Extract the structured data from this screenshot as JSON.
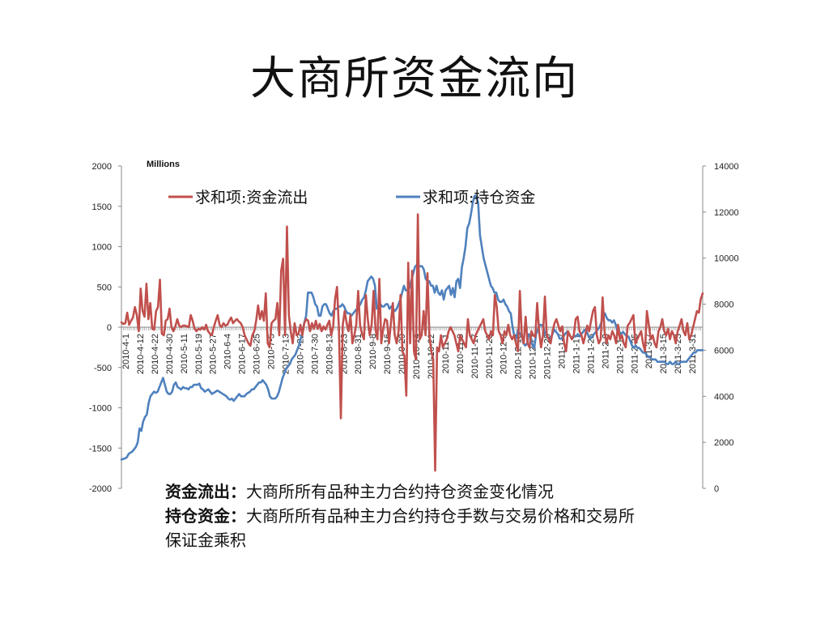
{
  "slide": {
    "title": "大商所资金流向"
  },
  "colors": {
    "outflow": "#C0504D",
    "position": "#4F81BD",
    "axis": "#888888"
  },
  "notes": [
    {
      "term": "资金流出：",
      "text": "大商所所有品种主力合约持仓资金变化情况"
    },
    {
      "term": "持仓资金：",
      "text": "大商所所有品种主力合约持仓手数与交易价格和交易所保证金乘积"
    }
  ],
  "chart_data": {
    "type": "line",
    "unit_label": "Millions",
    "y_left": {
      "min": -2000,
      "max": 2000,
      "ticks": [
        2000,
        1500,
        1000,
        500,
        0,
        -500,
        -1000,
        -1500,
        -2000
      ]
    },
    "y_right": {
      "min": 0,
      "max": 14000,
      "ticks": [
        14000,
        12000,
        10000,
        8000,
        6000,
        4000,
        2000,
        0
      ]
    },
    "x_tick_labels": [
      "2010-4-1",
      "2010-4-12",
      "2010-4-22",
      "2010-4-30",
      "2010-5-11",
      "2010-5-19",
      "2010-5-27",
      "2010-6-4",
      "2010-6-17",
      "2010-6-25",
      "2010-7-5",
      "2010-7-13",
      "2010-7-22",
      "2010-7-30",
      "2010-8-13",
      "2010-8-23",
      "2010-8-31",
      "2010-9-8",
      "2010-9-16",
      "2010-9-29",
      "2010-10-14",
      "2010-10-22",
      "2010-11-1",
      "2010-11-9",
      "2010-11-17",
      "2010-11-25",
      "2010-12-3",
      "2010-12-13",
      "2010-12-21",
      "2010-12-29",
      "2011-1-7",
      "2011-1-17",
      "2011-1-25",
      "2011-2-9",
      "2011-2-17",
      "2011-2-25",
      "2011-3-7",
      "2011-3-15",
      "2011-3-23",
      "2011-3-31"
    ],
    "legend_position": "top",
    "series": [
      {
        "name": "求和项:资金流出",
        "axis": "left",
        "values": [
          60,
          40,
          50,
          180,
          30,
          80,
          120,
          250,
          150,
          -50,
          480,
          200,
          130,
          540,
          100,
          300,
          -20,
          -30,
          200,
          250,
          590,
          -80,
          -100,
          80,
          100,
          230,
          0,
          -50,
          10,
          100,
          20,
          0,
          20,
          20,
          10,
          0,
          150,
          80,
          -20,
          -50,
          -20,
          -30,
          0,
          -30,
          30,
          -50,
          -80,
          -100,
          0,
          80,
          150,
          30,
          0,
          50,
          20,
          30,
          80,
          120,
          50,
          80,
          100,
          70,
          50,
          0,
          -100,
          -150,
          -200,
          -230,
          -100,
          -50,
          80,
          270,
          100,
          200,
          80,
          420,
          -200,
          -250,
          50,
          80,
          100,
          300,
          -100,
          700,
          850,
          -100,
          1250,
          150,
          -60,
          -200,
          50,
          -100,
          -80,
          30,
          -100,
          50,
          100,
          80,
          -50,
          50,
          -20,
          80,
          -20,
          40,
          -50,
          10,
          -30,
          30,
          80,
          -100,
          10,
          350,
          500,
          -20,
          -1130,
          30,
          200,
          50,
          -50,
          150,
          -200,
          -100,
          30,
          450,
          20,
          -80,
          -150,
          400,
          100,
          -100,
          30,
          450,
          -30,
          -150,
          600,
          -200,
          -20,
          100,
          80,
          -200,
          50,
          300,
          -100,
          -200,
          -50,
          400,
          -300,
          -350,
          -850,
          800,
          -200,
          700,
          -300,
          -400,
          1400,
          -150,
          -100,
          200,
          -100,
          670,
          -100,
          -300,
          -400,
          -1780,
          -250,
          -300,
          -100,
          -250,
          -200,
          -150,
          -50,
          0,
          -50,
          -100,
          -200,
          -300,
          -100,
          -150,
          -200,
          -250,
          100,
          -100,
          -150,
          -200,
          -100,
          -50,
          0,
          50,
          100,
          -50,
          -100,
          -150,
          -50,
          -100,
          400,
          250,
          -50,
          -100,
          -200,
          -50,
          -100,
          30,
          -100,
          -150,
          -100,
          -200,
          -300,
          450,
          -100,
          -200,
          130,
          -200,
          -250,
          -50,
          -100,
          -120,
          300,
          -50,
          -250,
          -100,
          380,
          -100,
          -150,
          -200,
          -50,
          50,
          100,
          20,
          -50,
          10,
          -200,
          -300,
          -50,
          -100,
          -150,
          -100,
          100,
          130,
          -50,
          -100,
          -200,
          -100,
          20,
          -50,
          80,
          200,
          250,
          -100,
          -200,
          -150,
          370,
          -50,
          -200,
          -100,
          -150,
          -50,
          -100,
          -200,
          30,
          -150,
          -100,
          -200,
          -250,
          20,
          50,
          100,
          150,
          -200,
          -150,
          -100,
          -50,
          -200,
          -300,
          200,
          30,
          -150,
          -100,
          -200,
          -250,
          -50,
          0,
          100,
          -50,
          -100,
          -20,
          -150,
          -50,
          -100,
          -200,
          -50,
          20,
          100,
          -50,
          -100,
          50,
          -150,
          -100,
          0,
          100,
          200,
          180,
          350,
          420
        ]
      },
      {
        "name": "求和项:持仓资金",
        "axis": "right",
        "values": [
          1250,
          1280,
          1300,
          1350,
          1500,
          1550,
          1600,
          1700,
          1800,
          2000,
          2600,
          2500,
          2900,
          3100,
          3200,
          3700,
          4000,
          4100,
          4200,
          4150,
          4200,
          4400,
          4600,
          4800,
          4500,
          4200,
          4100,
          4100,
          4200,
          4500,
          4600,
          4400,
          4350,
          4300,
          4400,
          4350,
          4350,
          4300,
          4400,
          4400,
          4500,
          4500,
          4500,
          4550,
          4350,
          4300,
          4200,
          4250,
          4300,
          4200,
          4100,
          4150,
          4200,
          4250,
          4200,
          4150,
          4100,
          4050,
          4000,
          3900,
          3850,
          3900,
          3800,
          3900,
          4000,
          4100,
          4000,
          4000,
          4000,
          4100,
          4150,
          4200,
          4300,
          4300,
          4400,
          4500,
          4600,
          4600,
          4700,
          4600,
          4500,
          4300,
          4000,
          3900,
          3900,
          3900,
          4000,
          4200,
          4500,
          4800,
          5000,
          5200,
          5300,
          5400,
          5600,
          5700,
          5800,
          6000,
          6200,
          6500,
          6800,
          7200,
          7500,
          8500,
          8500,
          8500,
          8300,
          8000,
          7900,
          7500,
          7500,
          7900,
          8000,
          8000,
          7800,
          7600,
          7500,
          7700,
          7800,
          7800,
          7900,
          7900,
          8000,
          7900,
          7700,
          7600,
          7600,
          7500,
          7600,
          7700,
          7800,
          7900,
          8000,
          8200,
          8300,
          8600,
          9000,
          9100,
          9200,
          9100,
          8800,
          7800,
          7900,
          8000,
          7900,
          7900,
          8000,
          8000,
          7800,
          7900,
          7800,
          7700,
          7800,
          8000,
          8200,
          8500,
          8800,
          8600,
          8600,
          8700,
          9000,
          9300,
          9600,
          9700,
          9650,
          9650,
          9650,
          9500,
          9100,
          9000,
          9000,
          8800,
          8800,
          8500,
          8800,
          8500,
          8400,
          8600,
          8200,
          8600,
          8700,
          8800,
          8400,
          8700,
          8300,
          9000,
          9100,
          8700,
          9600,
          10000,
          10500,
          11300,
          11500,
          11900,
          12400,
          12700,
          12700,
          12400,
          11000,
          10500,
          10000,
          9700,
          9400,
          9100,
          8800,
          8700,
          8500,
          8500,
          8200,
          8100,
          8100,
          8200,
          8000,
          7900,
          7700,
          7600,
          7000,
          6600,
          6500,
          6900,
          6700,
          6700,
          6300,
          6200,
          6300,
          6700,
          6600,
          6200,
          6100,
          6700,
          6900,
          7100,
          7100,
          7000,
          6700,
          6600,
          6500,
          6500,
          6700,
          6900,
          6800,
          6700,
          6500,
          6500,
          6600,
          6700,
          6800,
          6700,
          6600,
          6500,
          6600,
          6600,
          6700,
          6600,
          6700,
          6800,
          6900,
          6800,
          6600,
          6500,
          6600,
          6700,
          6800,
          6900,
          7000,
          7200,
          7500,
          7600,
          7400,
          7300,
          7300,
          7200,
          7300,
          7100,
          6800,
          6800,
          6700,
          6800,
          6700,
          6600,
          6600,
          6400,
          6200,
          6100,
          6200,
          6100,
          6100,
          6000,
          5900,
          5900,
          5800,
          5700,
          5700,
          5600,
          5600,
          5600,
          5500,
          5500,
          5500,
          5500,
          5500,
          5400,
          5400,
          5500,
          5400,
          5400,
          5500,
          5400,
          5400,
          5500,
          5500,
          5500,
          5500,
          5600,
          5700,
          5800,
          5900,
          5900,
          6000,
          6000,
          6000,
          6000
        ]
      }
    ]
  }
}
